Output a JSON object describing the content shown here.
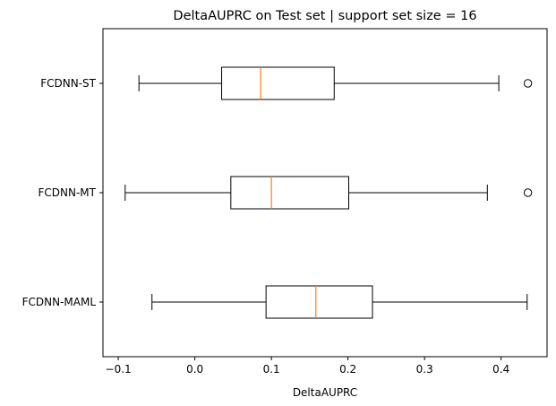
{
  "chart_data": {
    "type": "boxplot",
    "orientation": "horizontal",
    "title": "DeltaAUPRC on Test set | support set size = 16",
    "xlabel": "DeltaAUPRC",
    "ylabel": "",
    "xlim": [
      -0.12,
      0.46
    ],
    "xticks": [
      -0.1,
      0.0,
      0.1,
      0.2,
      0.3,
      0.4
    ],
    "xtick_labels": [
      "−0.1",
      "0.0",
      "0.1",
      "0.2",
      "0.3",
      "0.4"
    ],
    "grid": false,
    "categories": [
      "FCDNN-MAML",
      "FCDNN-MT",
      "FCDNN-ST"
    ],
    "boxes": [
      {
        "label": "FCDNN-MAML",
        "whisker_low": -0.056,
        "q1": 0.093,
        "median": 0.158,
        "q3": 0.232,
        "whisker_high": 0.434,
        "outliers": []
      },
      {
        "label": "FCDNN-MT",
        "whisker_low": -0.091,
        "q1": 0.047,
        "median": 0.1,
        "q3": 0.201,
        "whisker_high": 0.382,
        "outliers": [
          0.435
        ]
      },
      {
        "label": "FCDNN-ST",
        "whisker_low": -0.073,
        "q1": 0.035,
        "median": 0.086,
        "q3": 0.182,
        "whisker_high": 0.397,
        "outliers": [
          0.435
        ]
      }
    ],
    "colors": {
      "box": "#000000",
      "median": "#ff7f0e"
    }
  }
}
